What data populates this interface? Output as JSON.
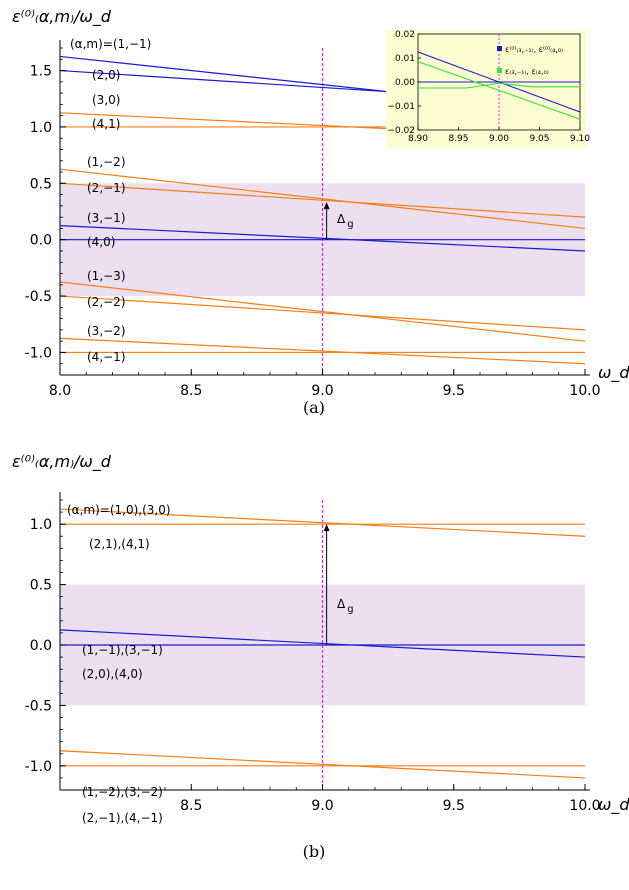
{
  "colors": {
    "orange": "#f57f17",
    "blue": "#1a1ad0",
    "green": "#3ddc3d",
    "magenta": "#e020e0",
    "band": "#ece0f0",
    "inset_bg": "#fdfdd2"
  },
  "chart_data": [
    {
      "type": "line",
      "panel_caption": "(a)",
      "ylabel": "ε⁽⁰⁾₍α,m₎/ω_d",
      "xlabel": "ω_d",
      "xlim": [
        8.0,
        10.0
      ],
      "ylim": [
        -1.2,
        1.7
      ],
      "x_ticks": [
        "8.0",
        "8.5",
        "9.0",
        "9.5",
        "10.0"
      ],
      "x_tick_values": [
        8.0,
        8.5,
        9.0,
        9.5,
        10.0
      ],
      "y_ticks": [
        "1.5",
        "1.0",
        "0.5",
        "0.0",
        "-0.5",
        "-1.0"
      ],
      "y_tick_values": [
        1.5,
        1.0,
        0.5,
        0.0,
        -0.5,
        -1.0
      ],
      "shaded_band": [
        -0.5,
        0.5
      ],
      "vline": 9.0,
      "gap_label": "Δ",
      "gap_label_sub": "g",
      "gap_arrow": {
        "x": 9.05,
        "y0": 0.0,
        "y1": 0.333
      },
      "series": [
        {
          "label": "(α,m)=(1,−1)",
          "color": "blue",
          "x": [
            8.0,
            10.0
          ],
          "y": [
            1.625,
            1.125
          ]
        },
        {
          "label": "(2,0)",
          "color": "blue",
          "x": [
            8.0,
            10.0
          ],
          "y": [
            1.5,
            1.2
          ]
        },
        {
          "label": "(3,0)",
          "color": "orange",
          "x": [
            8.0,
            10.0
          ],
          "y": [
            1.125,
            0.9
          ]
        },
        {
          "label": "(4,1)",
          "color": "orange",
          "x": [
            8.0,
            10.0
          ],
          "y": [
            1.0,
            1.0
          ]
        },
        {
          "label": "(1,−2)",
          "color": "orange",
          "x": [
            8.0,
            10.0
          ],
          "y": [
            0.625,
            0.1
          ]
        },
        {
          "label": "(2,−1)",
          "color": "orange",
          "x": [
            8.0,
            10.0
          ],
          "y": [
            0.5,
            0.2
          ]
        },
        {
          "label": "(3,−1)",
          "color": "blue",
          "x": [
            8.0,
            10.0
          ],
          "y": [
            0.125,
            -0.1
          ]
        },
        {
          "label": "(4,0)",
          "color": "blue",
          "x": [
            8.0,
            10.0
          ],
          "y": [
            0.0,
            0.0
          ]
        },
        {
          "label": "(1,−3)",
          "color": "orange",
          "x": [
            8.0,
            10.0
          ],
          "y": [
            -0.375,
            -0.9
          ]
        },
        {
          "label": "(2,−2)",
          "color": "orange",
          "x": [
            8.0,
            10.0
          ],
          "y": [
            -0.5,
            -0.8
          ]
        },
        {
          "label": "(3,−2)",
          "color": "orange",
          "x": [
            8.0,
            10.0
          ],
          "y": [
            -0.875,
            -1.1
          ]
        },
        {
          "label": "(4,−1)",
          "color": "orange",
          "x": [
            8.0,
            10.0
          ],
          "y": [
            -1.0,
            -1.0
          ]
        }
      ],
      "inset": {
        "xlim": [
          8.9,
          9.1
        ],
        "ylim": [
          -0.02,
          0.02
        ],
        "x_ticks": [
          "8.90",
          "8.95",
          "9.00",
          "9.05",
          "9.10"
        ],
        "x_tick_values": [
          8.9,
          8.95,
          9.0,
          9.05,
          9.1
        ],
        "y_ticks": [
          "0.02",
          "0.01",
          "0.00",
          "−0.01",
          "−0.02"
        ],
        "y_tick_values": [
          0.02,
          0.01,
          0.0,
          -0.01,
          -0.02
        ],
        "vline": 9.0,
        "legend": [
          {
            "label": "ε⁽⁰⁾₍₃,₋₁₎, ε⁽⁰⁾₍₄,₀₎",
            "color": "blue"
          },
          {
            "label": "ε₍₃,₋₁₎, ε₍₄,₀₎",
            "color": "green"
          }
        ],
        "series": [
          {
            "name": "ε⁽⁰⁾₍₃,₋₁₎",
            "color": "blue",
            "x": [
              8.9,
              9.1
            ],
            "y": [
              0.0125,
              -0.0125
            ]
          },
          {
            "name": "ε⁽⁰⁾₍₄,₀₎",
            "color": "blue",
            "x": [
              8.9,
              9.1
            ],
            "y": [
              0.0,
              0.0
            ]
          },
          {
            "name": "ε₍₃,₋₁₎",
            "color": "green",
            "x": [
              8.9,
              9.1
            ],
            "y": [
              0.0085,
              -0.0155
            ]
          },
          {
            "name": "ε₍₄,₀₎",
            "color": "green",
            "x": [
              8.9,
              8.96,
              9.0,
              9.04,
              9.1
            ],
            "y": [
              -0.0025,
              -0.0025,
              -0.0005,
              -0.002,
              -0.002
            ]
          }
        ]
      }
    },
    {
      "type": "line",
      "panel_caption": "(b)",
      "ylabel": "ε⁽⁰⁾₍α,m₎/ω_d",
      "xlabel": "ω_d",
      "xlim": [
        8.0,
        10.0
      ],
      "ylim": [
        -1.2,
        1.2
      ],
      "x_ticks": [
        "8.5",
        "9.0",
        "9.5",
        "10.0"
      ],
      "x_tick_values": [
        8.5,
        9.0,
        9.5,
        10.0
      ],
      "y_ticks": [
        "1.0",
        "0.5",
        "0.0",
        "-0.5",
        "-1.0"
      ],
      "y_tick_values": [
        1.0,
        0.5,
        0.0,
        -0.5,
        -1.0
      ],
      "shaded_band": [
        -0.5,
        0.5
      ],
      "vline": 9.0,
      "gap_label": "Δ",
      "gap_label_sub": "g",
      "gap_arrow": {
        "x": 9.05,
        "y0": 0.0,
        "y1": 1.0
      },
      "series": [
        {
          "label": "(α,m)=(1,0),(3,0)",
          "color": "orange",
          "x": [
            8.0,
            10.0
          ],
          "y": [
            1.125,
            0.9
          ]
        },
        {
          "label": "(2,1),(4,1)",
          "color": "orange",
          "x": [
            8.0,
            10.0
          ],
          "y": [
            1.0,
            1.0
          ]
        },
        {
          "label": "(1,−1),(3,−1)",
          "color": "blue",
          "x": [
            8.0,
            10.0
          ],
          "y": [
            0.125,
            -0.1
          ]
        },
        {
          "label": "(2,0),(4,0)",
          "color": "blue",
          "x": [
            8.0,
            10.0
          ],
          "y": [
            0.0,
            0.0
          ]
        },
        {
          "label": "(1,−2),(3,−2)",
          "color": "orange",
          "x": [
            8.0,
            10.0
          ],
          "y": [
            -0.875,
            -1.1
          ]
        },
        {
          "label": "(2,−1),(4,−1)",
          "color": "orange",
          "x": [
            8.0,
            10.0
          ],
          "y": [
            -1.0,
            -1.0
          ]
        }
      ]
    }
  ]
}
